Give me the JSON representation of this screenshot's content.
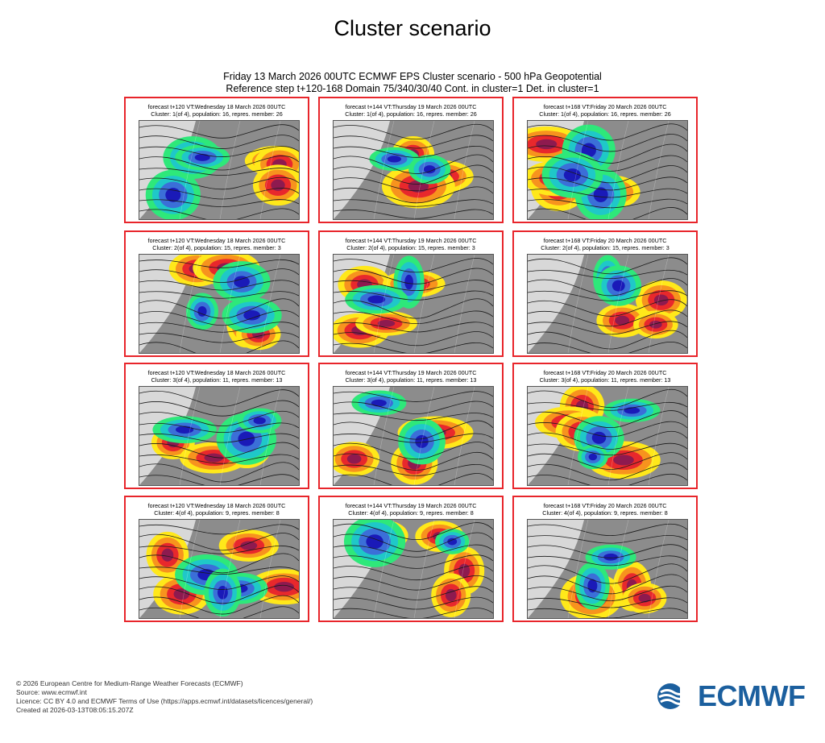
{
  "page": {
    "title": "Cluster scenario"
  },
  "figure": {
    "header_line1": "Friday 13 March 2026 00UTC ECMWF EPS Cluster scenario - 500 hPa Geopotential",
    "header_line2": "Reference step t+120-168 Domain 75/340/30/40 Cont. in cluster=1 Det. in cluster=1"
  },
  "panels": [
    {
      "line1": "forecast t+120 VT:Wednesday 18 March 2026 00UTC",
      "line2": "Cluster: 1(of 4), population: 16, repres. member: 26"
    },
    {
      "line1": "forecast t+144 VT:Thursday 19 March 2026 00UTC",
      "line2": "Cluster: 1(of 4), population: 16, repres. member: 26"
    },
    {
      "line1": "forecast t+168 VT:Friday 20 March 2026 00UTC",
      "line2": "Cluster: 1(of 4), population: 16, repres. member: 26"
    },
    {
      "line1": "forecast t+120 VT:Wednesday 18 March 2026 00UTC",
      "line2": "Cluster: 2(of 4), population: 15, repres. member: 3"
    },
    {
      "line1": "forecast t+144 VT:Thursday 19 March 2026 00UTC",
      "line2": "Cluster: 2(of 4), population: 15, repres. member: 3"
    },
    {
      "line1": "forecast t+168 VT:Friday 20 March 2026 00UTC",
      "line2": "Cluster: 2(of 4), population: 15, repres. member: 3"
    },
    {
      "line1": "forecast t+120 VT:Wednesday 18 March 2026 00UTC",
      "line2": "Cluster: 3(of 4), population: 11, repres. member: 13"
    },
    {
      "line1": "forecast t+144 VT:Thursday 19 March 2026 00UTC",
      "line2": "Cluster: 3(of 4), population: 11, repres. member: 13"
    },
    {
      "line1": "forecast t+168 VT:Friday 20 March 2026 00UTC",
      "line2": "Cluster: 3(of 4), population: 11, repres. member: 13"
    },
    {
      "line1": "forecast t+120 VT:Wednesday 18 March 2026 00UTC",
      "line2": "Cluster: 4(of 4), population: 9, repres. member: 8"
    },
    {
      "line1": "forecast t+144 VT:Thursday 19 March 2026 00UTC",
      "line2": "Cluster: 4(of 4), population: 9, repres. member: 8"
    },
    {
      "line1": "forecast t+168 VT:Friday 20 March 2026 00UTC",
      "line2": "Cluster: 4(of 4), population: 9, repres. member: 8"
    }
  ],
  "footer": {
    "line1": "© 2026 European Centre for Medium-Range Weather Forecasts (ECMWF)",
    "line2": "Source: www.ecmwf.int",
    "line3": "Licence: CC BY 4.0 and ECMWF Terms of Use (https://apps.ecmwf.int/datasets/licences/general/)",
    "line4": "Created at 2026-03-13T08:05:15.207Z"
  },
  "logo": {
    "text": "ECMWF",
    "icon": "ecmwf-logo-icon",
    "color": "#1b5f9e"
  },
  "colors": {
    "panel_border": "#e8252b",
    "anomaly_strong_positive": "#8e1a4f",
    "anomaly_positive": "#e8282c",
    "anomaly_weak_positive": "#f7931e",
    "anomaly_slight_positive": "#ffe81a",
    "anomaly_slight_negative": "#2ee87a",
    "anomaly_negative": "#1fc8c8",
    "anomaly_strong_negative": "#3b6fd8",
    "anomaly_extreme_negative": "#1a1ab8",
    "land": "#8c8c8c"
  }
}
